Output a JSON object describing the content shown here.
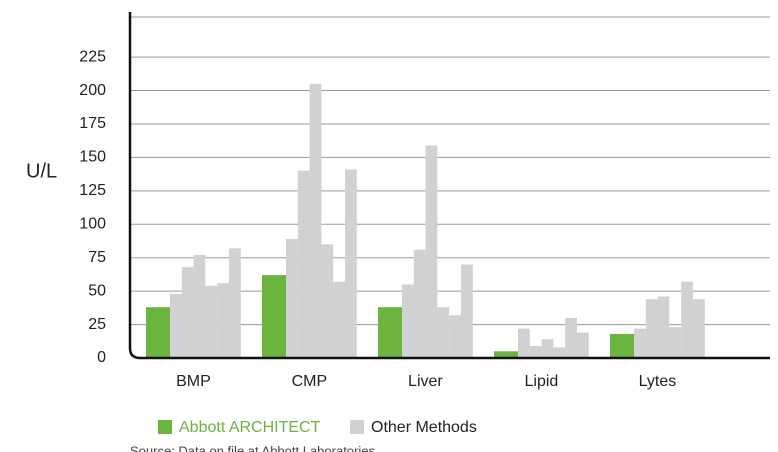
{
  "chart_data": {
    "type": "bar",
    "y_label": "U/L",
    "categories": [
      "BMP",
      "CMP",
      "Liver",
      "Lipid",
      "Lytes"
    ],
    "series": [
      {
        "name": "Abbott ARCHITECT",
        "color": "#6db33f",
        "values": [
          38,
          62,
          38,
          5,
          18
        ]
      },
      {
        "name": "Other Methods",
        "color": "#d0d1d3",
        "values": [
          [
            48,
            68,
            77,
            54,
            56,
            82
          ],
          [
            89,
            140,
            205,
            85,
            57,
            141
          ],
          [
            55,
            81,
            159,
            38,
            32,
            70
          ],
          [
            22,
            9,
            14,
            8,
            30,
            19
          ],
          [
            22,
            44,
            46,
            23,
            57,
            44
          ]
        ]
      }
    ],
    "ylim": [
      0,
      255
    ],
    "yticks": [
      0,
      25,
      50,
      75,
      100,
      125,
      150,
      175,
      200,
      225
    ],
    "grid": true,
    "source": "Source: Data on file at Abbott Laboratories."
  }
}
